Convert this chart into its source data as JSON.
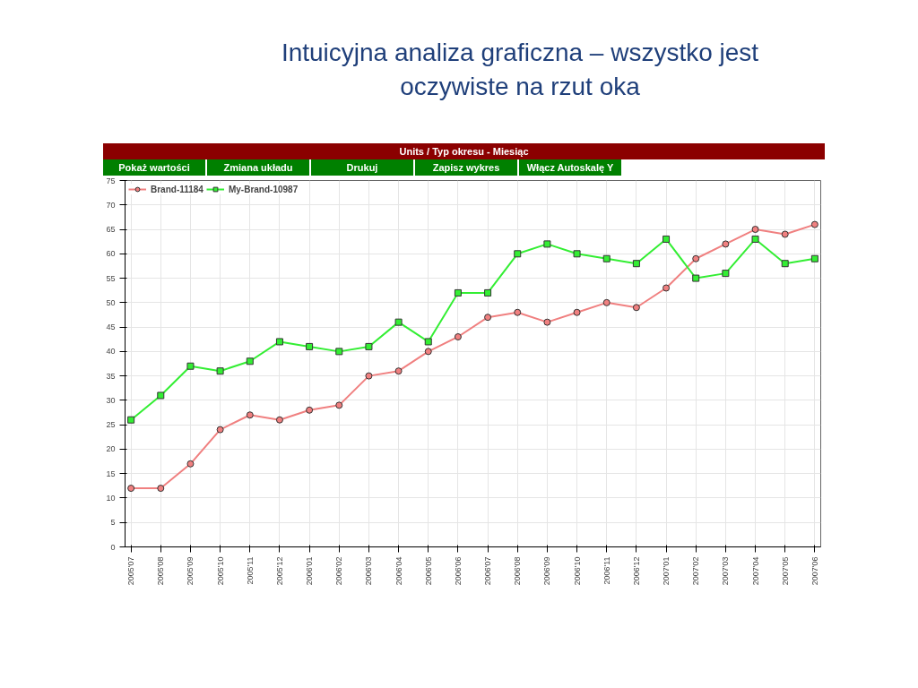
{
  "chart_data": {
    "type": "line",
    "title": "Intuicyjna analiza graficzna – wszystko jest oczywiste na rzut oka",
    "subtitle": "Units / Typ okresu - Miesiąc",
    "annotations": [
      "Pokaż wartości",
      "Zmiana układu",
      "Drukuj",
      "Zapisz wykres",
      "Włącz Autoskalę Y"
    ],
    "categories": [
      "2005'07",
      "2005'08",
      "2005'09",
      "2005'10",
      "2005'11",
      "2005'12",
      "2006'01",
      "2006'02",
      "2006'03",
      "2006'04",
      "2006'05",
      "2006'06",
      "2006'07",
      "2006'08",
      "2006'09",
      "2006'10",
      "2006'11",
      "2006'12",
      "2007'01",
      "2007'02",
      "2007'03",
      "2007'04",
      "2007'05",
      "2007'06"
    ],
    "series": [
      {
        "name": "Brand-11184",
        "color": "#f08080",
        "marker": "circle",
        "values": [
          12,
          12,
          17,
          24,
          27,
          26,
          28,
          29,
          35,
          36,
          40,
          43,
          47,
          48,
          46,
          48,
          50,
          49,
          53,
          59,
          62,
          65,
          64,
          66
        ]
      },
      {
        "name": "My-Brand-10987",
        "color": "#33ee33",
        "marker": "square",
        "values": [
          26,
          31,
          37,
          36,
          38,
          42,
          41,
          40,
          41,
          46,
          42,
          52,
          52,
          60,
          62,
          60,
          59,
          58,
          63,
          55,
          56,
          63,
          58,
          59
        ]
      }
    ],
    "ylim": [
      0,
      75
    ],
    "yticks": [
      0,
      5,
      10,
      15,
      20,
      25,
      30,
      35,
      40,
      45,
      50,
      55,
      60,
      65,
      70,
      75
    ],
    "grid": true,
    "legend": "top left"
  }
}
